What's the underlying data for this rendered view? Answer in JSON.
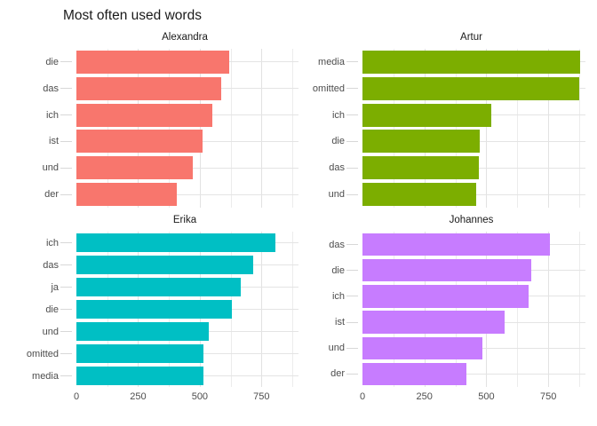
{
  "chart_data": {
    "type": "bar",
    "orientation": "horizontal",
    "title": "Most often used words",
    "xlabel": "",
    "ylabel": "",
    "legend_position": "none",
    "grid": "on",
    "axis_max": 900,
    "x_ticks": [
      0,
      250,
      500,
      750
    ],
    "grid_major": [
      250,
      500,
      750
    ],
    "grid_minor": [
      125,
      375,
      625,
      875
    ],
    "facets": [
      {
        "name": "Alexandra",
        "color": "#F8766D",
        "categories": [
          "die",
          "das",
          "ich",
          "ist",
          "und",
          "der"
        ],
        "values": [
          620,
          585,
          550,
          510,
          470,
          405
        ]
      },
      {
        "name": "Artur",
        "color": "#7CAE00",
        "categories": [
          "media",
          "omitted",
          "ich",
          "die",
          "das",
          "und"
        ],
        "values": [
          880,
          875,
          520,
          473,
          469,
          460
        ]
      },
      {
        "name": "Erika",
        "color": "#00BFC4",
        "categories": [
          "ich",
          "das",
          "ja",
          "die",
          "und",
          "omitted",
          "media"
        ],
        "values": [
          805,
          715,
          665,
          630,
          535,
          515,
          515
        ]
      },
      {
        "name": "Johannes",
        "color": "#C77CFF",
        "categories": [
          "das",
          "die",
          "ich",
          "ist",
          "und",
          "der"
        ],
        "values": [
          755,
          680,
          670,
          575,
          485,
          420
        ]
      }
    ]
  },
  "colors": {
    "title_text": "#1A1A1A",
    "strip_text": "#1A1A1A",
    "axis_text": "#4D4D4D",
    "grid_major": "#E2E2E2",
    "grid_minor": "#ECECEC",
    "tick_mark": "#D8D8D8",
    "background": "#FFFFFF"
  }
}
